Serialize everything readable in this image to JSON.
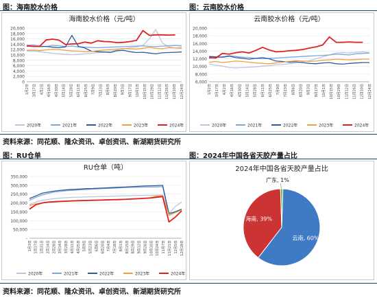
{
  "captions": {
    "tl": "图：海南胶水价格",
    "tr": "图：云南胶水价格",
    "bl": "图：RU仓单",
    "br": "图：2024年中国各省天胶产量占比"
  },
  "sources": {
    "top": "资料来源：同花顺、隆众资讯、卓创资讯、新湖期货研究所",
    "bottom": "资料来源：同花顺、隆众资讯、卓创资讯、新湖期货研究所"
  },
  "colors": {
    "y2020": "#b8c7e0",
    "y2021": "#7ea6d8",
    "y2022": "#2e5c9a",
    "y2023": "#f0a040",
    "y2024": "#e02020",
    "rule": "#1f3d7a"
  },
  "chart_data": [
    {
      "type": "line",
      "title": "海南胶水价格（元/吨）",
      "ylim": [
        0,
        20000
      ],
      "yticks": [
        "0",
        "2,000",
        "4,000",
        "6,000",
        "8,000",
        "10,000",
        "12,000",
        "14,000",
        "16,000",
        "18,000",
        "20,000"
      ],
      "x": [
        "1月2日",
        "1月17日",
        "2月1日",
        "2月16日",
        "3月2日",
        "3月17日",
        "4月1日",
        "4月16日",
        "5月1日",
        "5月16日",
        "5月31日",
        "6月15日",
        "6月30日",
        "7月15日",
        "7月30日",
        "8月14日",
        "8月29日",
        "9月13日",
        "9月28日",
        "10月13日",
        "10月28日",
        "11月12日",
        "11月27日",
        "12月12日",
        "12月27日"
      ],
      "xticks": [
        "1月2日",
        "3月17日",
        "4月2日",
        "4月16日",
        "4月30日",
        "5月14日",
        "5月28日",
        "6月11日",
        "6月25日",
        "7月9日",
        "7月23日",
        "8月6日",
        "8月20日",
        "9月3日",
        "9月17日",
        "10月1日",
        "10月15日",
        "10月29日",
        "11月12日",
        "11月26日",
        "12月10日",
        "12月24日"
      ],
      "series": [
        {
          "name": "2020年",
          "color": "#b8c7e0",
          "values": [
            11500,
            11400,
            11200,
            10900,
            10600,
            10400,
            10200,
            10100,
            10200,
            10400,
            10600,
            10800,
            11000,
            11400,
            11800,
            12300,
            12700,
            13000,
            13500,
            16000,
            19500,
            14500,
            13000,
            12600,
            12800
          ]
        },
        {
          "name": "2021年",
          "color": "#7ea6d8",
          "values": [
            13600,
            13700,
            13300,
            13100,
            13600,
            13400,
            13100,
            13300,
            13000,
            12900,
            12800,
            12700,
            12800,
            12900,
            13000,
            13100,
            13200,
            13300,
            13400,
            13200,
            13100,
            13300,
            13400,
            13500,
            13400
          ]
        },
        {
          "name": "2022年",
          "color": "#2e5c9a",
          "values": [
            13300,
            13200,
            13100,
            13200,
            12900,
            12700,
            13000,
            17300,
            13200,
            12600,
            11400,
            11200,
            11100,
            10900,
            11600,
            11700,
            11200,
            10900,
            11000,
            10700,
            10400,
            10800,
            10900,
            11000,
            11100
          ]
        },
        {
          "name": "2023年",
          "color": "#f0a040",
          "values": [
            11700,
            11800,
            11600,
            11900,
            12100,
            12000,
            11700,
            11500,
            11400,
            11200,
            11300,
            11600,
            11800,
            12000,
            12200,
            12400,
            12300,
            12200,
            12500,
            12800,
            12500,
            12300,
            12700,
            12600,
            12500
          ]
        },
        {
          "name": "2024年",
          "color": "#e02020",
          "values": [
            13400,
            13200,
            13200,
            15600,
            15900,
            15500,
            13900,
            14100,
            14200,
            14800,
            14400,
            15300,
            15000,
            14900,
            14600,
            14700,
            15000,
            15400,
            19100,
            17300,
            17500,
            17500,
            17400,
            17500,
            null
          ]
        }
      ]
    },
    {
      "type": "line",
      "title": "云南胶水价格（元/吨）",
      "ylim": [
        6000,
        20000
      ],
      "yticks": [
        "6,000",
        "8,000",
        "10,000",
        "12,000",
        "14,000",
        "16,000",
        "18,000",
        "20,000"
      ],
      "x": [
        "1月2日",
        "1月17日",
        "2月1日",
        "2月16日",
        "3月2日",
        "3月17日",
        "4月1日",
        "4月16日",
        "5月1日",
        "5月16日",
        "5月31日",
        "6月15日",
        "6月30日",
        "7月15日",
        "7月30日",
        "8月14日",
        "8月29日",
        "9月13日",
        "9月28日",
        "10月13日",
        "10月28日",
        "11月12日",
        "11月27日",
        "12月12日",
        "12月27日"
      ],
      "xticks": [
        "1月2日",
        "3月17日",
        "4月2日",
        "4月16日",
        "4月30日",
        "5月14日",
        "5月28日",
        "6月11日",
        "6月25日",
        "7月9日",
        "7月23日",
        "8月6日",
        "8月20日",
        "9月3日",
        "9月17日",
        "10月1日",
        "10月15日",
        "10月29日",
        "11月12日",
        "11月26日",
        "12月10日",
        "12月24日"
      ],
      "series": [
        {
          "name": "2020年",
          "color": "#b8c7e0",
          "values": [
            10600,
            10300,
            10100,
            9700,
            9600,
            9700,
            9800,
            9900,
            10100,
            10200,
            10400,
            10500,
            10700,
            10900,
            11200,
            11500,
            12000,
            12500,
            13000,
            13500,
            13600,
            13500,
            13700,
            13800,
            13600
          ]
        },
        {
          "name": "2021年",
          "color": "#7ea6d8",
          "values": [
            12100,
            12300,
            12500,
            12800,
            12600,
            12400,
            12300,
            12100,
            12000,
            12100,
            12200,
            12300,
            12400,
            12500,
            12600,
            12700,
            12800,
            12900,
            13000,
            13200,
            13100,
            13000,
            13300,
            13400,
            13500
          ]
        },
        {
          "name": "2022年",
          "color": "#2e5c9a",
          "values": [
            12600,
            12500,
            12400,
            12700,
            12300,
            12100,
            11900,
            12100,
            12300,
            12000,
            11400,
            11300,
            11100,
            11200,
            11000,
            10800,
            10700,
            10900,
            11000,
            10700,
            10600,
            10800,
            10900,
            11000,
            11000
          ]
        },
        {
          "name": "2023年",
          "color": "#f0a040",
          "values": [
            11100,
            11300,
            11000,
            11200,
            11400,
            11300,
            11100,
            10900,
            10800,
            10700,
            10900,
            11100,
            11300,
            11500,
            11400,
            11300,
            11400,
            11600,
            11700,
            11900,
            11800,
            11700,
            11800,
            11900,
            11900
          ]
        },
        {
          "name": "2024年",
          "color": "#e02020",
          "values": [
            12300,
            12200,
            13400,
            13200,
            13600,
            13800,
            13500,
            14200,
            15000,
            14300,
            13800,
            13900,
            14100,
            14200,
            14400,
            14800,
            15100,
            15600,
            17700,
            16300,
            16300,
            16400,
            16300,
            16300,
            null
          ]
        }
      ]
    },
    {
      "type": "line",
      "title": "RU仓单（吨）",
      "ylim": [
        0,
        350000
      ],
      "yticks": [
        "-",
        "50,000",
        "100,000",
        "150,000",
        "200,000",
        "250,000",
        "300,000",
        "350,000"
      ],
      "x": [
        "1月3日",
        "1月18日",
        "2月2日",
        "2月17日",
        "3月4日",
        "3月19日",
        "4月3日",
        "4月18日",
        "5月3日",
        "5月18日",
        "6月2日",
        "6月17日",
        "7月2日",
        "7月17日",
        "8月1日",
        "8月16日",
        "8月31日",
        "9月15日",
        "9月30日",
        "10月15日",
        "10月30日",
        "11月14日",
        "11月29日",
        "12月14日",
        "12月29日"
      ],
      "xticks": [
        "1月3日",
        "1月17日",
        "1月31日",
        "2月14日",
        "2月28日",
        "3月14日",
        "3月28日",
        "4月11日",
        "4月25日",
        "5月9日",
        "5月23日",
        "6月6日",
        "6月20日",
        "7月4日",
        "7月18日",
        "8月1日",
        "8月15日",
        "8月29日",
        "9月12日",
        "9月26日",
        "10月10日",
        "10月24日",
        "11月7日",
        "11月21日",
        "12月5日",
        "12月19日"
      ],
      "series": [
        {
          "name": "2020年",
          "color": "#b8c7e0",
          "values": [
            190000,
            205000,
            215000,
            220000,
            225000,
            228000,
            230000,
            232000,
            233000,
            234000,
            235000,
            236000,
            237000,
            238000,
            239000,
            240000,
            241000,
            242000,
            243000,
            243000,
            244000,
            245000,
            140000,
            180000,
            205000
          ]
        },
        {
          "name": "2021年",
          "color": "#7ea6d8",
          "values": [
            215000,
            232000,
            245000,
            255000,
            262000,
            266000,
            270000,
            272000,
            274000,
            276000,
            278000,
            280000,
            282000,
            283000,
            285000,
            287000,
            288000,
            289000,
            290000,
            290000,
            291000,
            292000,
            130000,
            150000,
            160000
          ]
        },
        {
          "name": "2022年",
          "color": "#2e5c9a",
          "values": [
            225000,
            240000,
            255000,
            262000,
            268000,
            272000,
            275000,
            277000,
            279000,
            281000,
            282000,
            284000,
            285000,
            287000,
            289000,
            290000,
            292000,
            294000,
            296000,
            297000,
            298000,
            300000,
            140000,
            150000,
            165000
          ]
        },
        {
          "name": "2023年",
          "color": "#f0a040",
          "values": [
            185000,
            195000,
            200000,
            204000,
            208000,
            210000,
            212000,
            213000,
            214000,
            215000,
            216000,
            217000,
            218000,
            219000,
            220000,
            221000,
            222000,
            223000,
            225000,
            230000,
            238000,
            242000,
            130000,
            145000,
            160000
          ]
        },
        {
          "name": "2024年",
          "color": "#e02020",
          "values": [
            165000,
            190000,
            200000,
            205000,
            207000,
            209000,
            210000,
            212000,
            213000,
            214000,
            215000,
            216000,
            217000,
            218000,
            219000,
            220000,
            222000,
            224000,
            226000,
            228000,
            232000,
            236000,
            92000,
            120000,
            155000
          ]
        }
      ]
    },
    {
      "type": "pie",
      "title": "2024年中国各省天胶产量占比",
      "labels": [
        "云南",
        "海南",
        "广东"
      ],
      "values": [
        60,
        39,
        1
      ],
      "data_labels": [
        "云南, 60%",
        "海南, 39%",
        "广东, 1%"
      ],
      "colors": [
        "#3f7ac5",
        "#cc3333",
        "#7ab648"
      ]
    }
  ]
}
